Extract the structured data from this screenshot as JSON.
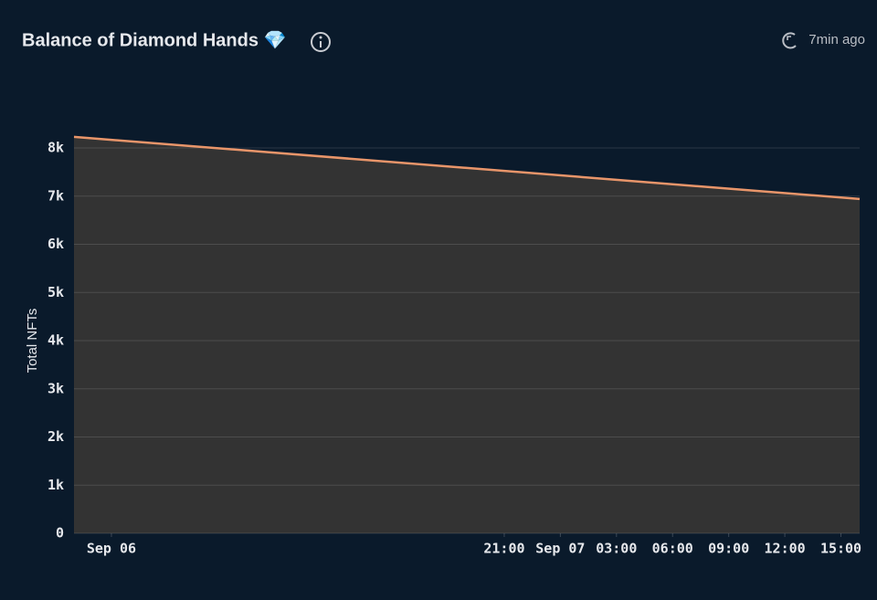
{
  "title": "Balance of Diamond Hands 💎",
  "updated": "7min ago",
  "chart_data": {
    "type": "area",
    "x": [
      "09-05 22:00",
      "09-07 16:00"
    ],
    "values": [
      8230,
      6940
    ],
    "color": "#e8956a",
    "fill": "#333333",
    "xlim": [
      "09-05 22:00",
      "09-07 16:00"
    ],
    "xticks": [
      {
        "value": "09-06 00:00",
        "label": "Sep 06"
      },
      {
        "value": "09-06 21:00",
        "label": "21:00"
      },
      {
        "value": "09-07 00:00",
        "label": "Sep 07"
      },
      {
        "value": "09-07 03:00",
        "label": "03:00"
      },
      {
        "value": "09-07 06:00",
        "label": "06:00"
      },
      {
        "value": "09-07 09:00",
        "label": "09:00"
      },
      {
        "value": "09-07 12:00",
        "label": "12:00"
      },
      {
        "value": "09-07 15:00",
        "label": "15:00"
      }
    ],
    "ylim": [
      0,
      8000
    ],
    "yticks": [
      0,
      {
        "value": 1000,
        "label": "1k"
      },
      {
        "value": 2000,
        "label": "2k"
      },
      {
        "value": 3000,
        "label": "3k"
      },
      {
        "value": 4000,
        "label": "4k"
      },
      {
        "value": 5000,
        "label": "5k"
      },
      {
        "value": 6000,
        "label": "6k"
      },
      {
        "value": 7000,
        "label": "7k"
      },
      {
        "value": 8000,
        "label": "8k"
      }
    ],
    "ylabel": "Total NFTs",
    "grid": true
  }
}
